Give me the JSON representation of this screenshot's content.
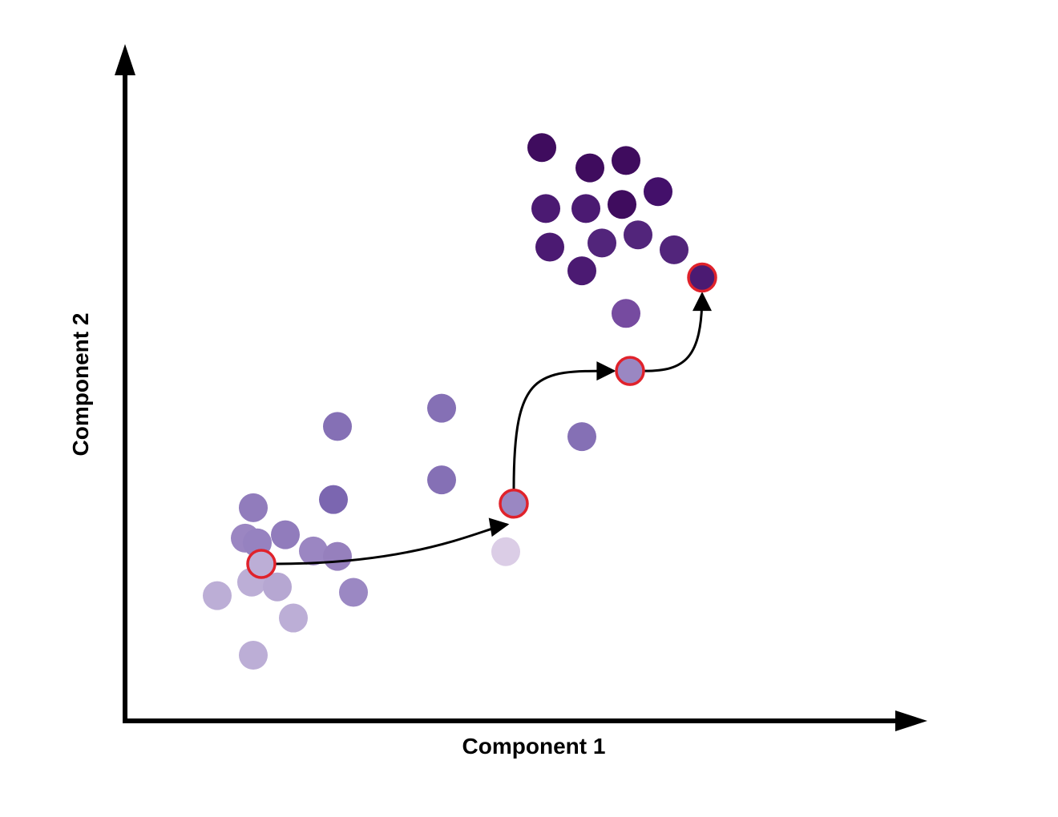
{
  "chart_data": {
    "type": "scatter",
    "title": "",
    "xlabel": "Component 1",
    "ylabel": "Component 2",
    "xlim": [
      0,
      100
    ],
    "ylim": [
      0,
      100
    ],
    "grid": false,
    "legend": "none",
    "points": [
      {
        "x": 16.0,
        "y": 31.5,
        "color": "#917cbc"
      },
      {
        "x": 20.0,
        "y": 27.5,
        "color": "#917cbc"
      },
      {
        "x": 15.0,
        "y": 27.0,
        "color": "#9b86c2"
      },
      {
        "x": 16.5,
        "y": 26.3,
        "color": "#9682c0"
      },
      {
        "x": 23.5,
        "y": 25.1,
        "color": "#9b86c2"
      },
      {
        "x": 26.5,
        "y": 24.3,
        "color": "#9680bd"
      },
      {
        "x": 28.5,
        "y": 19.0,
        "color": "#9b88c3"
      },
      {
        "x": 15.8,
        "y": 20.5,
        "color": "#bcaed6"
      },
      {
        "x": 11.5,
        "y": 18.5,
        "color": "#bcaed6"
      },
      {
        "x": 19.0,
        "y": 19.8,
        "color": "#b6a7d2"
      },
      {
        "x": 21.0,
        "y": 15.2,
        "color": "#bcaed6"
      },
      {
        "x": 16.0,
        "y": 9.7,
        "color": "#bcaed6"
      },
      {
        "x": 26.5,
        "y": 43.5,
        "color": "#8570b5"
      },
      {
        "x": 26.0,
        "y": 32.7,
        "color": "#7b66b0"
      },
      {
        "x": 39.5,
        "y": 46.2,
        "color": "#8570b5"
      },
      {
        "x": 39.5,
        "y": 35.6,
        "color": "#8570b5"
      },
      {
        "x": 47.5,
        "y": 25.0,
        "color": "#dbcde6"
      },
      {
        "x": 57.0,
        "y": 42.0,
        "color": "#8570b5"
      },
      {
        "x": 62.5,
        "y": 60.2,
        "color": "#764ba0"
      },
      {
        "x": 52.0,
        "y": 84.7,
        "color": "#3f0c5e"
      },
      {
        "x": 58.0,
        "y": 81.7,
        "color": "#3f0c5e"
      },
      {
        "x": 62.5,
        "y": 82.8,
        "color": "#3f0c5e"
      },
      {
        "x": 66.5,
        "y": 78.2,
        "color": "#43106a"
      },
      {
        "x": 62.0,
        "y": 76.3,
        "color": "#3f0c5e"
      },
      {
        "x": 52.5,
        "y": 75.7,
        "color": "#4b1a72"
      },
      {
        "x": 57.5,
        "y": 75.7,
        "color": "#4b1a72"
      },
      {
        "x": 53.0,
        "y": 70.0,
        "color": "#4b1a72"
      },
      {
        "x": 59.5,
        "y": 70.6,
        "color": "#52257b"
      },
      {
        "x": 64.0,
        "y": 71.8,
        "color": "#52257b"
      },
      {
        "x": 68.5,
        "y": 69.6,
        "color": "#52257b"
      },
      {
        "x": 57.0,
        "y": 66.5,
        "color": "#4b1a72"
      }
    ],
    "trajectory": [
      {
        "x": 17.0,
        "y": 23.2,
        "color": "#bcaed6"
      },
      {
        "x": 48.5,
        "y": 32.1,
        "color": "#9a87c2"
      },
      {
        "x": 63.0,
        "y": 51.7,
        "color": "#9a87c2"
      },
      {
        "x": 72.0,
        "y": 65.5,
        "color": "#4b1a72"
      }
    ],
    "trajectory_style": {
      "stroke": "#000000",
      "ring": "#e0222b"
    }
  }
}
